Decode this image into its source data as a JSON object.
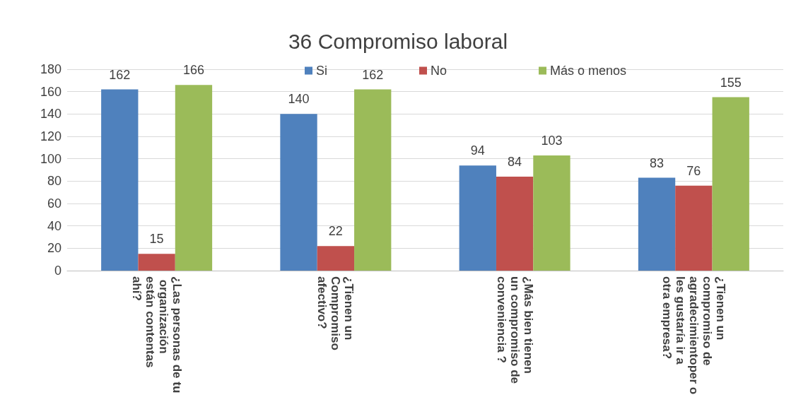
{
  "chart_data": {
    "type": "bar",
    "title": "36 Compromiso laboral",
    "categories": [
      "¿Las personas de tu organización están contentas ahí?",
      "¿Tienen un Compromiso afectivo?",
      "¿Más bien tienen un compromiso de conveniencia ?",
      "¿Tienen un compromiso de agradecimientoper o les gustaría ir a otra empresa?"
    ],
    "series": [
      {
        "name": "Si",
        "color": "#4f81bd",
        "values": [
          162,
          140,
          94,
          83
        ]
      },
      {
        "name": "No",
        "color": "#c0504d",
        "values": [
          15,
          22,
          84,
          76
        ]
      },
      {
        "name": "Más o menos",
        "color": "#9bbb59",
        "values": [
          166,
          162,
          103,
          155
        ]
      }
    ],
    "ylim": [
      0,
      180
    ],
    "yticks": [
      0,
      20,
      40,
      60,
      80,
      100,
      120,
      140,
      160,
      180
    ],
    "grid": "y",
    "legend": "top",
    "data_labels": true
  }
}
